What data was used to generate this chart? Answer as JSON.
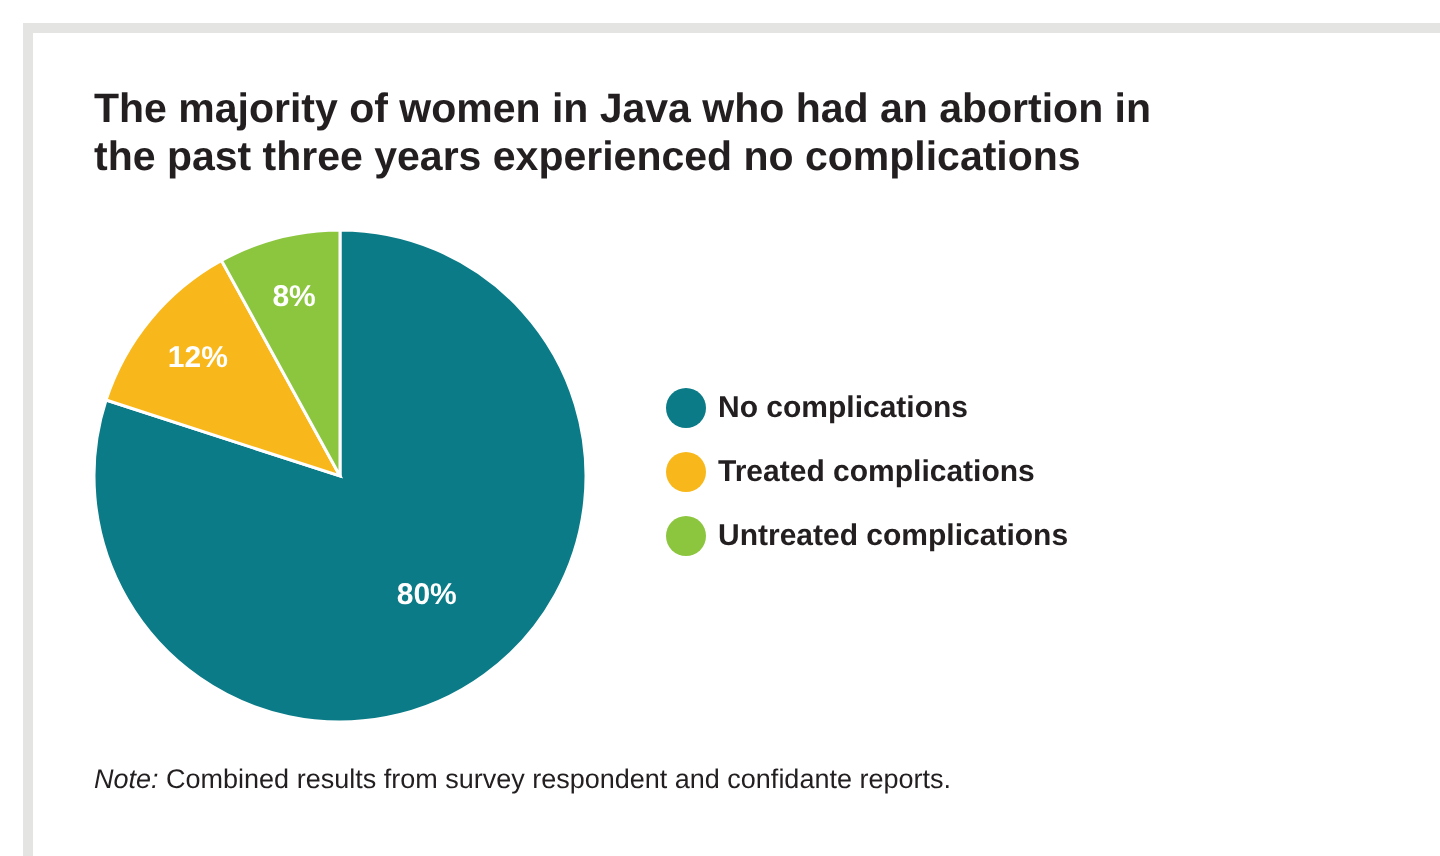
{
  "chart_data": {
    "type": "pie",
    "title": "The majority of women in Java who had an abortion in the past three years experienced no complications",
    "categories": [
      "No complications",
      "Treated complications",
      "Untreated complications"
    ],
    "values": [
      80,
      12,
      8
    ],
    "value_labels": [
      "80%",
      "12%",
      "8%"
    ],
    "colors": [
      "#0a7b87",
      "#f8b81c",
      "#8cc63f"
    ],
    "legend": "right",
    "annotations": [
      "Note: Combined results from survey respondent and confidante reports."
    ]
  }
}
